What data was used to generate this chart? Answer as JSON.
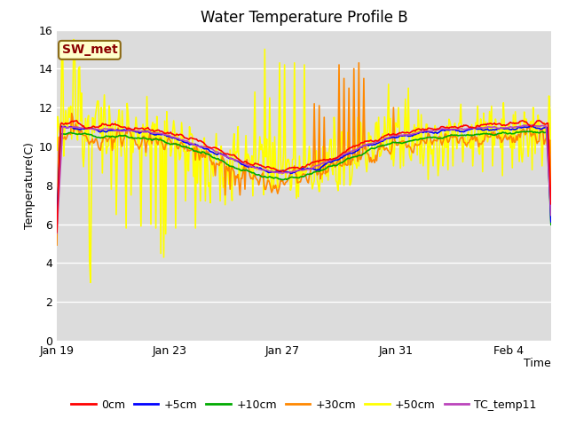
{
  "title": "Water Temperature Profile B",
  "xlabel": "Time",
  "ylabel": "Temperature(C)",
  "ylim": [
    0,
    16
  ],
  "yticks": [
    0,
    2,
    4,
    6,
    8,
    10,
    12,
    14,
    16
  ],
  "bg_color": "#dcdcdc",
  "fig_color": "#ffffff",
  "annotation_text": "SW_met",
  "annotation_color": "#8b0000",
  "annotation_bg": "#ffffcc",
  "annotation_border": "#8b6914",
  "series_colors": {
    "0cm": "#ff0000",
    "+5cm": "#0000ff",
    "+10cm": "#00aa00",
    "+30cm": "#ff8800",
    "+50cm": "#ffff00",
    "TC_temp11": "#bb44bb"
  },
  "series_lw": 1.2,
  "x_tick_labels": [
    "Jan 19",
    "Jan 23",
    "Jan 27",
    "Jan 31",
    "Feb 4"
  ],
  "x_tick_positions": [
    0,
    4,
    8,
    12,
    16
  ],
  "xlim": [
    0,
    17.5
  ]
}
